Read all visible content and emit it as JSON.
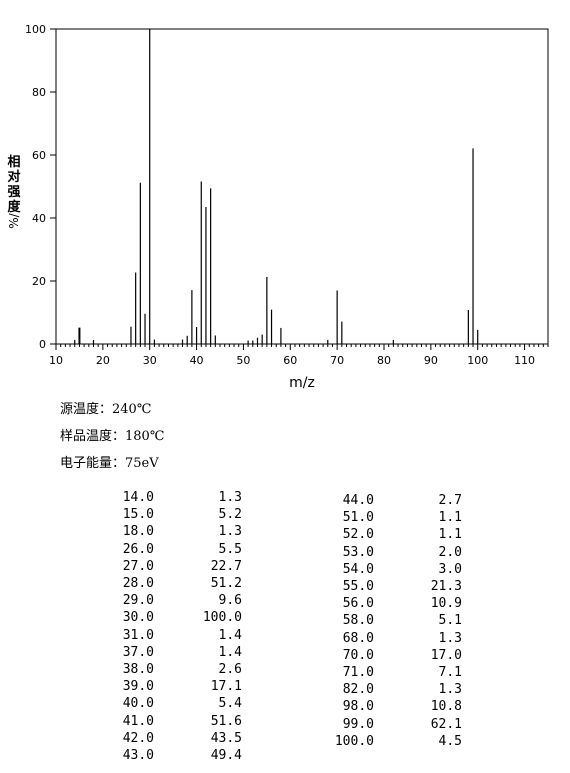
{
  "chart_data": {
    "type": "bar",
    "xlabel": "m/z",
    "ylabel_chars": [
      "相",
      "对",
      "强",
      "度"
    ],
    "ylabel_unit": "%/",
    "xlim": [
      10,
      115
    ],
    "ylim": [
      0,
      100
    ],
    "xticks": [
      10,
      20,
      30,
      40,
      50,
      60,
      70,
      80,
      90,
      100,
      110
    ],
    "yticks": [
      0,
      20,
      40,
      60,
      80,
      100
    ],
    "grid": false,
    "x": [
      14,
      15,
      18,
      26,
      27,
      28,
      29,
      30,
      31,
      37,
      38,
      39,
      40,
      41,
      42,
      43,
      44,
      51,
      52,
      53,
      54,
      55,
      56,
      58,
      68,
      70,
      71,
      82,
      98,
      99,
      100
    ],
    "values": [
      1.3,
      5.2,
      1.3,
      5.5,
      22.7,
      51.2,
      9.6,
      100.0,
      1.4,
      1.4,
      2.6,
      17.1,
      5.4,
      51.6,
      43.5,
      49.4,
      2.7,
      1.1,
      1.1,
      2.0,
      3.0,
      21.3,
      10.9,
      5.1,
      1.3,
      17.0,
      7.1,
      1.3,
      10.8,
      62.1,
      4.5
    ]
  },
  "conditions": [
    "源温度：240℃",
    "样品温度：180℃",
    "电子能量：75eV"
  ],
  "peak_table": {
    "left": [
      [
        "14.0",
        "1.3"
      ],
      [
        "15.0",
        "5.2"
      ],
      [
        "18.0",
        "1.3"
      ],
      [
        "26.0",
        "5.5"
      ],
      [
        "27.0",
        "22.7"
      ],
      [
        "28.0",
        "51.2"
      ],
      [
        "29.0",
        "9.6"
      ],
      [
        "30.0",
        "100.0"
      ],
      [
        "31.0",
        "1.4"
      ],
      [
        "37.0",
        "1.4"
      ],
      [
        "38.0",
        "2.6"
      ],
      [
        "39.0",
        "17.1"
      ],
      [
        "40.0",
        "5.4"
      ],
      [
        "41.0",
        "51.6"
      ],
      [
        "42.0",
        "43.5"
      ],
      [
        "43.0",
        "49.4"
      ]
    ],
    "right": [
      [
        "44.0",
        "2.7"
      ],
      [
        "51.0",
        "1.1"
      ],
      [
        "52.0",
        "1.1"
      ],
      [
        "53.0",
        "2.0"
      ],
      [
        "54.0",
        "3.0"
      ],
      [
        "55.0",
        "21.3"
      ],
      [
        "56.0",
        "10.9"
      ],
      [
        "58.0",
        "5.1"
      ],
      [
        "68.0",
        "1.3"
      ],
      [
        "70.0",
        "17.0"
      ],
      [
        "71.0",
        "7.1"
      ],
      [
        "82.0",
        "1.3"
      ],
      [
        "98.0",
        "10.8"
      ],
      [
        "99.0",
        "62.1"
      ],
      [
        "100.0",
        "4.5"
      ]
    ]
  }
}
